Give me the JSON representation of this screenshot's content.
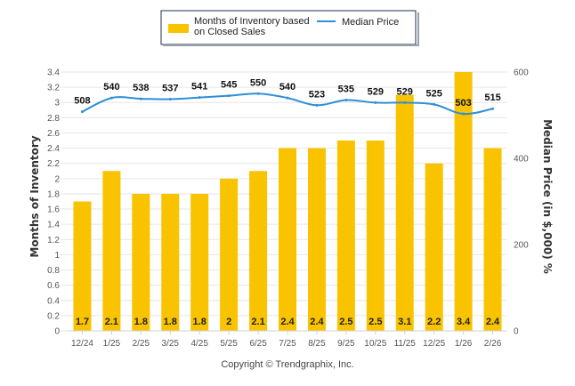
{
  "chart_data": {
    "type": "bar",
    "categories": [
      "12/24",
      "1/25",
      "2/25",
      "3/25",
      "4/25",
      "5/25",
      "6/25",
      "7/25",
      "8/25",
      "9/25",
      "10/25",
      "11/25",
      "12/25",
      "1/26",
      "2/26"
    ],
    "series": [
      {
        "name": "Months of Inventory based on Closed Sales",
        "legend_lines": [
          "Months of Inventory based",
          "on Closed Sales"
        ],
        "type": "bar",
        "axis": "left",
        "color": "#F9C300",
        "values": [
          1.7,
          2.1,
          1.8,
          1.8,
          1.8,
          2,
          2.1,
          2.4,
          2.4,
          2.5,
          2.5,
          3.1,
          2.2,
          3.4,
          2.4
        ],
        "labels": [
          "1.7",
          "2.1",
          "1.8",
          "1.8",
          "1.8",
          "2",
          "2.1",
          "2.4",
          "2.4",
          "2.5",
          "2.5",
          "3.1",
          "2.2",
          "3.4",
          "2.4"
        ]
      },
      {
        "name": "Median Price",
        "type": "line",
        "axis": "right",
        "color": "#2E8FD6",
        "values": [
          508,
          540,
          538,
          537,
          541,
          545,
          550,
          540,
          523,
          535,
          529,
          529,
          525,
          503,
          515
        ],
        "labels": [
          "508",
          "540",
          "538",
          "537",
          "541",
          "545",
          "550",
          "540",
          "523",
          "535",
          "529",
          "529",
          "525",
          "503",
          "515"
        ]
      }
    ],
    "ylabel": "Months of Inventory",
    "y2label": "Median Price (in $,000) %",
    "xlabel": "",
    "ylim": [
      0,
      3.4
    ],
    "y2lim": [
      0,
      600
    ],
    "yticks": [
      "0",
      "0.2",
      "0.4",
      "0.6",
      "0.8",
      "1",
      "1.2",
      "1.4",
      "1.6",
      "1.8",
      "2",
      "2.2",
      "2.4",
      "2.6",
      "2.8",
      "3",
      "3.2",
      "3.4"
    ],
    "y2ticks": [
      "0",
      "200",
      "400",
      "600"
    ],
    "grid": true,
    "legend_position": "top-center",
    "footer": "Copyright © Trendgraphix, Inc."
  }
}
